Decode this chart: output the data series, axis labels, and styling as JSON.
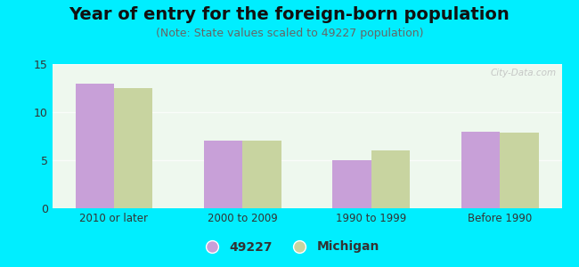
{
  "title": "Year of entry for the foreign-born population",
  "subtitle": "(Note: State values scaled to 49227 population)",
  "categories": [
    "2010 or later",
    "2000 to 2009",
    "1990 to 1999",
    "Before 1990"
  ],
  "series_49227": [
    13,
    7,
    5,
    8
  ],
  "series_michigan": [
    12.5,
    7,
    6,
    7.9
  ],
  "color_49227": "#c8a0d8",
  "color_michigan": "#c8d4a0",
  "background_outer": "#00eeff",
  "background_inner": "#eef8ee",
  "ylim": [
    0,
    15
  ],
  "yticks": [
    0,
    5,
    10,
    15
  ],
  "legend_labels": [
    "49227",
    "Michigan"
  ],
  "bar_width": 0.3,
  "watermark": "City-Data.com",
  "title_fontsize": 14,
  "subtitle_fontsize": 9
}
